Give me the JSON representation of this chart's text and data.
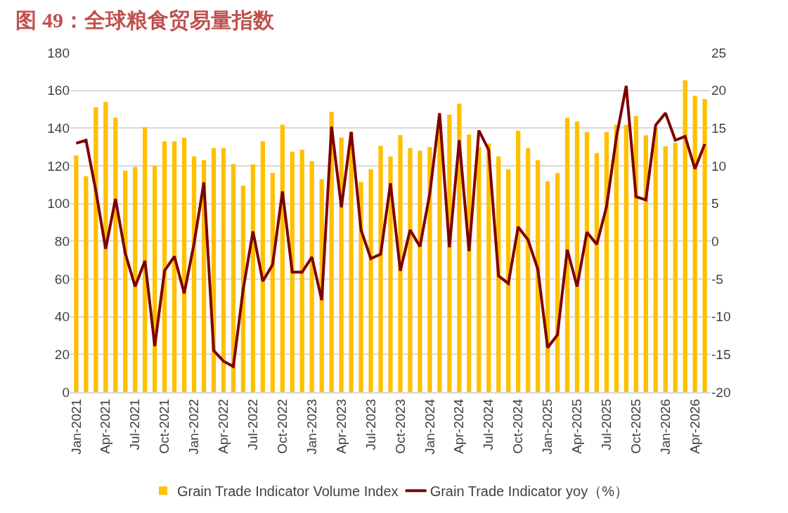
{
  "chart_data": {
    "type": "bar",
    "title": "图 49：全球粮食贸易量指数",
    "categories": [
      "Jan-2021",
      null,
      null,
      "Apr-2021",
      null,
      null,
      "Jul-2021",
      null,
      null,
      "Oct-2021",
      null,
      null,
      "Jan-2022",
      null,
      null,
      "Apr-2022",
      null,
      null,
      "Jul-2022",
      null,
      null,
      "Oct-2022",
      null,
      null,
      "Jan-2023",
      null,
      null,
      "Apr-2023",
      null,
      null,
      "Jul-2023",
      null,
      null,
      "Oct-2023",
      null,
      null,
      "Jan-2024",
      null,
      null,
      "Apr-2024",
      null,
      null,
      "Jul-2024",
      null,
      null,
      "Oct-2024",
      null,
      null,
      "Jan-2025",
      null,
      null,
      "Apr-2025",
      null,
      null,
      "Jul-2025",
      null,
      null,
      "Oct-2025",
      null,
      null,
      "Jan-2026",
      null,
      null,
      "Apr-2026",
      null
    ],
    "series": [
      {
        "name": "Grain Trade Indicator Volume Index",
        "color": "#ffc000",
        "values": [
          125.5,
          114.5,
          151,
          154,
          145.5,
          117.4,
          119.4,
          140.6,
          120,
          133,
          133,
          135,
          125,
          123,
          129.4,
          129.4,
          121,
          109.5,
          120.8,
          133,
          116.3,
          141.8,
          127.5,
          128.6,
          122.5,
          113,
          148.6,
          135,
          138,
          111.4,
          118.2,
          130.6,
          125,
          136.3,
          129.4,
          128,
          130,
          142,
          147.2,
          153,
          136.6,
          130,
          131.8,
          125,
          118.2,
          138.6,
          129.4,
          123,
          111.8,
          116.2,
          145.5,
          143.5,
          138,
          126.8,
          138,
          141.8,
          141.8,
          146.5,
          136.2,
          140,
          130.3,
          132.2,
          165.4,
          157.2,
          155.4
        ]
      },
      {
        "name": "Grain Trade Indicator yoy（%）",
        "type": "line",
        "axis": "y2",
        "color": "#7f0000",
        "values": [
          13.0,
          13.4,
          6.7,
          -1.0,
          5.6,
          -1.6,
          -6.0,
          -2.6,
          -13.9,
          -3.9,
          -2.0,
          -6.9,
          -0.3,
          7.8,
          -14.5,
          -15.9,
          -16.6,
          -6.4,
          1.3,
          -5.3,
          -3.1,
          6.6,
          -4.1,
          -4.1,
          -2.1,
          -7.8,
          15.2,
          4.5,
          14.5,
          1.5,
          -2.3,
          -1.7,
          7.7,
          -3.9,
          1.5,
          -0.7,
          6.3,
          17.0,
          -0.8,
          13.4,
          -1.3,
          14.7,
          12.1,
          -4.6,
          -5.6,
          1.9,
          0.2,
          -3.7,
          -14.1,
          -12.4,
          -1.1,
          -6.0,
          1.2,
          -0.4,
          4.6,
          13.8,
          20.6,
          5.9,
          5.5,
          15.4,
          17.0,
          13.4,
          13.9,
          9.6,
          12.9
        ]
      }
    ],
    "ylim": [
      0,
      180
    ],
    "yticks": [
      0,
      20,
      40,
      60,
      80,
      100,
      120,
      140,
      160,
      180
    ],
    "y2lim": [
      -20,
      25
    ],
    "y2ticks": [
      -20,
      -15,
      -10,
      -5,
      0,
      5,
      10,
      15,
      20,
      25
    ],
    "grid": "y",
    "legend": "bottom",
    "marker": "none",
    "line_style": "solid"
  }
}
